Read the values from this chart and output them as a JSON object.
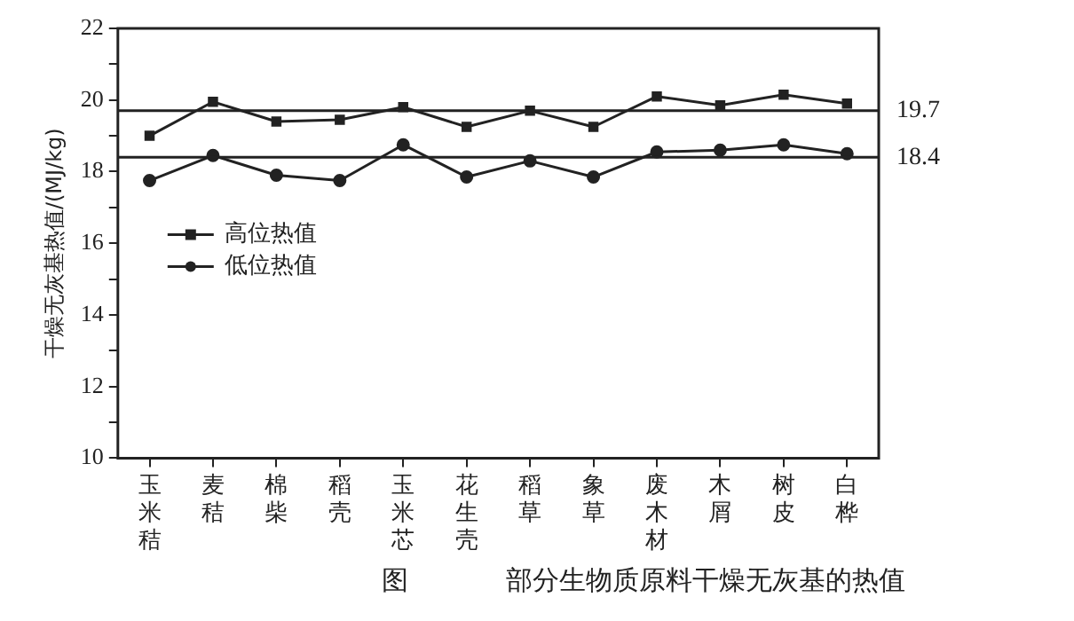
{
  "chart_data": {
    "type": "line",
    "title": "部分生物质原料干燥无灰基的热值",
    "ylabel": "干燥无灰基热值/(MJ/kg)",
    "annotations": [
      "图"
    ],
    "categories": [
      "玉米秸",
      "麦秸",
      "棉柴",
      "稻壳",
      "玉米芯",
      "花生壳",
      "稻草",
      "象草",
      "废木材",
      "木屑",
      "树皮",
      "白桦"
    ],
    "series": [
      {
        "name": "高位热值",
        "color": "#222222",
        "marker": "square",
        "values": [
          19.0,
          19.95,
          19.4,
          19.45,
          19.8,
          19.25,
          19.7,
          19.25,
          20.1,
          19.85,
          20.15,
          19.9
        ]
      },
      {
        "name": "低位热值",
        "color": "#222222",
        "marker": "circle",
        "values": [
          17.75,
          18.45,
          17.9,
          17.75,
          18.75,
          17.85,
          18.3,
          17.85,
          18.55,
          18.6,
          18.75,
          18.5
        ]
      }
    ],
    "ylim": [
      10,
      22
    ],
    "yticks": [
      10,
      {
        "value": 11,
        "label": null
      },
      12,
      {
        "value": 13,
        "label": null
      },
      14,
      {
        "value": 15,
        "label": null
      },
      16,
      {
        "value": 17,
        "label": null
      },
      18,
      {
        "value": 19,
        "label": null
      },
      20,
      {
        "value": 21,
        "label": null
      },
      22
    ],
    "ref_lines": [
      {
        "axis": "y",
        "value": 19.7,
        "label": "19.7",
        "color": "#222222"
      },
      {
        "axis": "y",
        "value": 18.4,
        "label": "18.4",
        "color": "#222222"
      }
    ],
    "grid": false,
    "legend": "left",
    "line_style": "solid"
  }
}
